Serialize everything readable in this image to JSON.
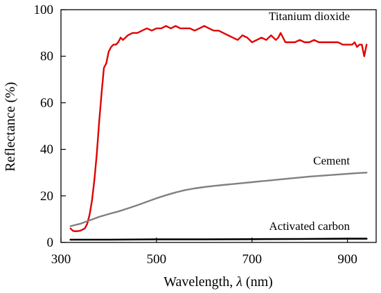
{
  "chart_data": {
    "type": "line",
    "title": "",
    "xlabel": "Wavelength, ",
    "xlabel_symbol": "λ",
    "xlabel_unit": " (nm)",
    "ylabel": "Reflectance (%)",
    "xlim": [
      300,
      960
    ],
    "ylim": [
      0,
      100
    ],
    "xticks": [
      300,
      500,
      700,
      900
    ],
    "yticks": [
      0,
      20,
      40,
      60,
      80,
      100
    ],
    "grid": false,
    "series": [
      {
        "name": "Titanium dioxide",
        "color": "#e00000",
        "x": [
          320,
          325,
          330,
          340,
          350,
          355,
          360,
          365,
          370,
          375,
          380,
          385,
          390,
          395,
          400,
          405,
          410,
          415,
          420,
          425,
          430,
          440,
          450,
          460,
          470,
          480,
          490,
          500,
          510,
          520,
          530,
          540,
          550,
          560,
          570,
          580,
          590,
          600,
          610,
          620,
          630,
          640,
          650,
          660,
          670,
          680,
          690,
          700,
          710,
          720,
          730,
          740,
          750,
          755,
          760,
          765,
          770,
          780,
          790,
          800,
          810,
          820,
          830,
          840,
          850,
          860,
          870,
          880,
          890,
          900,
          910,
          915,
          920,
          925,
          930,
          935,
          940
        ],
        "y": [
          6,
          5,
          4.8,
          5,
          6,
          8,
          12,
          18,
          27,
          38,
          52,
          64,
          75,
          77,
          82,
          84,
          85,
          85,
          86,
          88,
          87,
          89,
          90,
          90,
          91,
          92,
          91,
          92,
          92,
          93,
          92,
          93,
          92,
          92,
          92,
          91,
          92,
          93,
          92,
          91,
          91,
          90,
          89,
          88,
          87,
          89,
          88,
          86,
          87,
          88,
          87,
          89,
          87,
          88,
          90,
          88,
          86,
          86,
          86,
          87,
          86,
          86,
          87,
          86,
          86,
          86,
          86,
          86,
          85,
          85,
          85,
          86,
          84,
          85,
          85,
          80,
          85
        ]
      },
      {
        "name": "Cement",
        "color": "#808080",
        "x": [
          320,
          340,
          360,
          380,
          400,
          420,
          440,
          460,
          480,
          500,
          520,
          540,
          560,
          580,
          600,
          620,
          640,
          660,
          680,
          700,
          720,
          740,
          760,
          780,
          800,
          820,
          840,
          860,
          880,
          900,
          920,
          940
        ],
        "y": [
          7,
          8,
          9.5,
          11,
          12.2,
          13.3,
          14.6,
          16,
          17.5,
          19,
          20.3,
          21.5,
          22.5,
          23.2,
          23.8,
          24.3,
          24.7,
          25.1,
          25.5,
          25.9,
          26.3,
          26.7,
          27.1,
          27.5,
          27.9,
          28.3,
          28.6,
          28.9,
          29.2,
          29.5,
          29.8,
          30
        ]
      },
      {
        "name": "Activated carbon",
        "color": "#000000",
        "x": [
          320,
          400,
          500,
          600,
          700,
          800,
          900,
          940
        ],
        "y": [
          1.2,
          1.2,
          1.3,
          1.3,
          1.4,
          1.5,
          1.6,
          1.6
        ]
      }
    ]
  }
}
